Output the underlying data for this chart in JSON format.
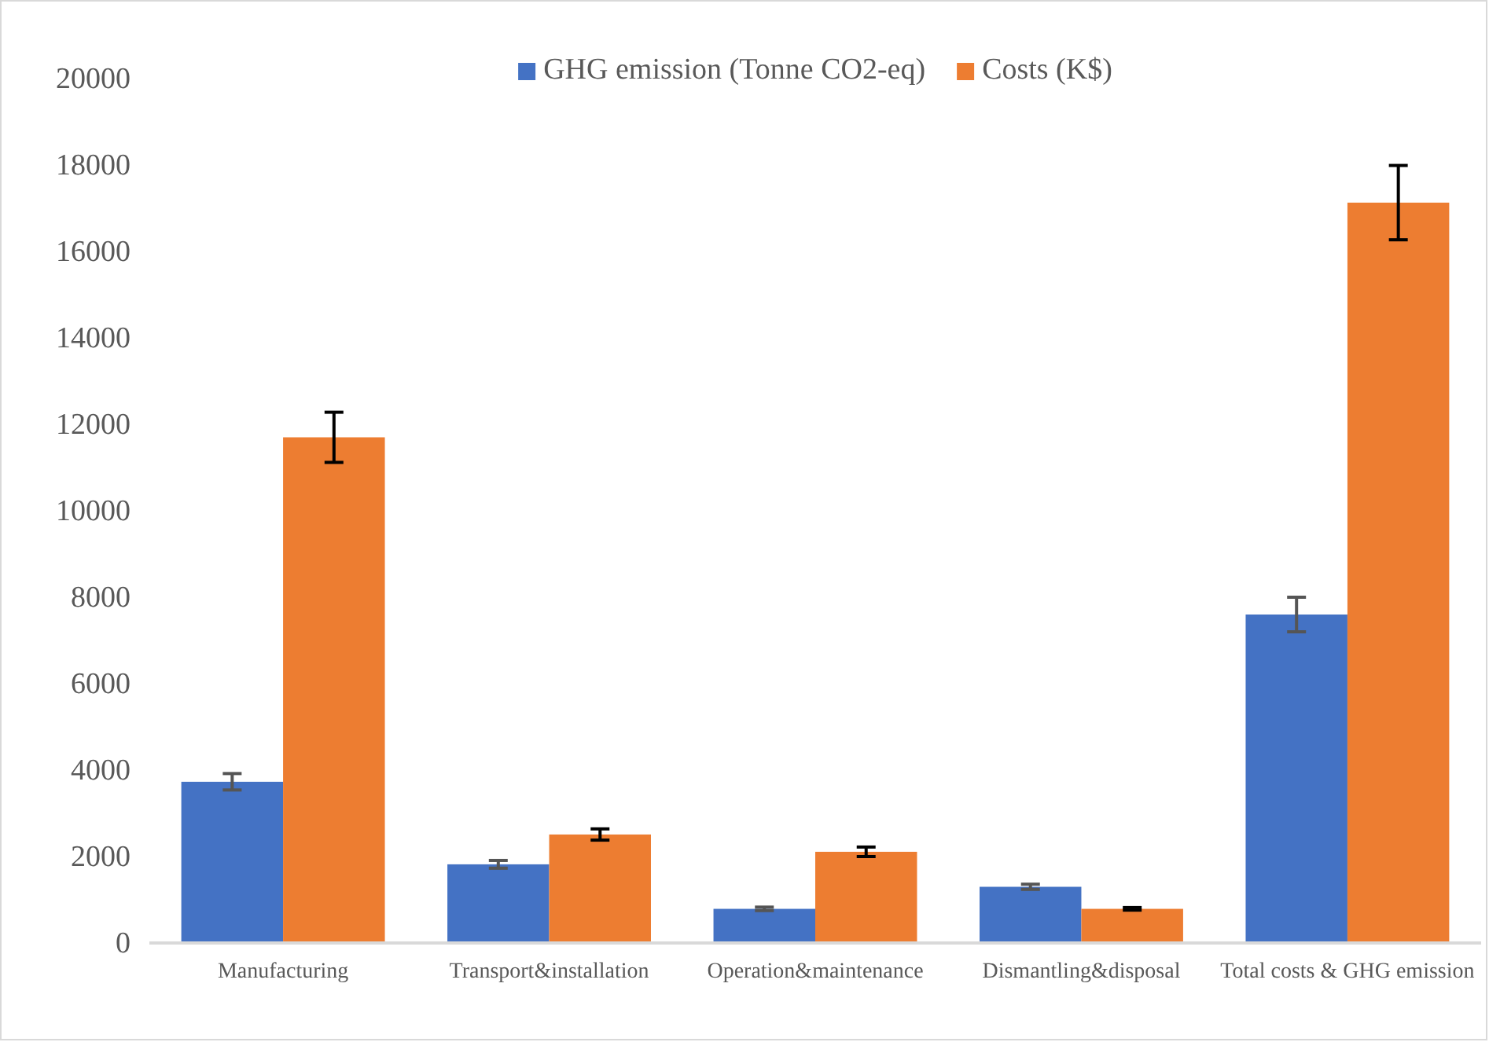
{
  "chart_data": {
    "type": "bar",
    "categories": [
      "Manufacturing",
      "Transport&installation",
      "Operation&maintenance",
      "Dismantling&disposal",
      "Total costs & GHG emission"
    ],
    "series": [
      {
        "name": "GHG emission (Tonne CO2-eq)",
        "color": "#4472c4",
        "values": [
          3730,
          1820,
          790,
          1300,
          7600
        ],
        "errors": [
          190,
          90,
          40,
          60,
          400
        ]
      },
      {
        "name": "Costs (K$)",
        "color": "#ed7d31",
        "values": [
          11700,
          2510,
          2110,
          790,
          17130
        ],
        "errors": [
          580,
          130,
          110,
          30,
          860
        ]
      }
    ],
    "ylim": [
      0,
      20000
    ],
    "yticks": [
      0,
      2000,
      4000,
      6000,
      8000,
      10000,
      12000,
      14000,
      16000,
      18000,
      20000
    ],
    "grid": false,
    "legend": "top"
  }
}
